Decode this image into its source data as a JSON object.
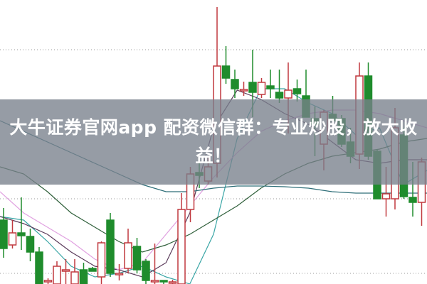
{
  "banner": {
    "text": "大牛证券官网app 配资微信群：专业炒股，放大收益！"
  },
  "colors": {
    "up": "#c0393f",
    "down": "#1f8c2c",
    "grid": "#999999",
    "ma_teal": "#3aa6a6",
    "ma_purple": "#5a3a5a",
    "ma_pink": "#e0a0e0",
    "ma_green": "#2f5f3a",
    "ma_long": "#2e6e78"
  },
  "chart_data": {
    "type": "candlestick",
    "ylim": [
      0,
      400
    ],
    "grid": true,
    "gridlines_y": [
      330,
      120,
      15
    ],
    "candles": [
      {
        "o": 90,
        "h": 107,
        "l": 37,
        "c": 50
      },
      {
        "o": 55,
        "h": 90,
        "l": 50,
        "c": 72
      },
      {
        "o": 72,
        "h": 122,
        "l": 48,
        "c": 68
      },
      {
        "o": 67,
        "h": 78,
        "l": 32,
        "c": 45
      },
      {
        "o": 45,
        "h": 52,
        "l": 0,
        "c": 0
      },
      {
        "o": 5,
        "h": 8,
        "l": 0,
        "c": 5
      },
      {
        "o": 0,
        "h": 32,
        "l": 0,
        "c": 25
      },
      {
        "o": 20,
        "h": 35,
        "l": 0,
        "c": 20
      },
      {
        "o": 0,
        "h": 35,
        "l": 0,
        "c": 17
      },
      {
        "o": 20,
        "h": 30,
        "l": 0,
        "c": 0
      },
      {
        "o": 22,
        "h": 24,
        "l": 18,
        "c": 18
      },
      {
        "o": 10,
        "h": 60,
        "l": 0,
        "c": 58
      },
      {
        "o": 90,
        "h": 100,
        "l": 10,
        "c": 15
      },
      {
        "o": 15,
        "h": 28,
        "l": 5,
        "c": 15
      },
      {
        "o": 22,
        "h": 78,
        "l": 15,
        "c": 58
      },
      {
        "o": 53,
        "h": 65,
        "l": 15,
        "c": 20
      },
      {
        "o": 32,
        "h": 35,
        "l": 0,
        "c": 5
      },
      {
        "o": 5,
        "h": 57,
        "l": 0,
        "c": 5
      },
      {
        "o": 5,
        "h": 5,
        "l": 0,
        "c": 3
      },
      {
        "o": 3,
        "h": 6,
        "l": 0,
        "c": 3
      },
      {
        "o": 0,
        "h": 128,
        "l": 0,
        "c": 105
      },
      {
        "o": 105,
        "h": 165,
        "l": 87,
        "c": 155
      },
      {
        "o": 157,
        "h": 178,
        "l": 135,
        "c": 153
      },
      {
        "o": 145,
        "h": 178,
        "l": 140,
        "c": 165
      },
      {
        "o": 170,
        "h": 390,
        "l": 150,
        "c": 307
      },
      {
        "o": 307,
        "h": 335,
        "l": 282,
        "c": 290
      },
      {
        "o": 288,
        "h": 302,
        "l": 262,
        "c": 275
      },
      {
        "o": 274,
        "h": 285,
        "l": 265,
        "c": 274
      },
      {
        "o": 284,
        "h": 330,
        "l": 235,
        "c": 270
      },
      {
        "o": 267,
        "h": 290,
        "l": 262,
        "c": 284
      },
      {
        "o": 279,
        "h": 302,
        "l": 262,
        "c": 275
      },
      {
        "o": 270,
        "h": 302,
        "l": 255,
        "c": 262
      },
      {
        "o": 262,
        "h": 312,
        "l": 212,
        "c": 273
      },
      {
        "o": 275,
        "h": 288,
        "l": 257,
        "c": 268
      },
      {
        "o": 265,
        "h": 302,
        "l": 235,
        "c": 235
      },
      {
        "o": 233,
        "h": 250,
        "l": 180,
        "c": 225
      },
      {
        "o": 197,
        "h": 245,
        "l": 160,
        "c": 242
      },
      {
        "o": 239,
        "h": 265,
        "l": 210,
        "c": 230
      },
      {
        "o": 233,
        "h": 238,
        "l": 193,
        "c": 197
      },
      {
        "o": 200,
        "h": 220,
        "l": 170,
        "c": 180
      },
      {
        "o": 183,
        "h": 312,
        "l": 162,
        "c": 293
      },
      {
        "o": 293,
        "h": 312,
        "l": 175,
        "c": 180
      },
      {
        "o": 187,
        "h": 190,
        "l": 120,
        "c": 120
      },
      {
        "o": 120,
        "h": 165,
        "l": 95,
        "c": 127
      },
      {
        "o": 120,
        "h": 248,
        "l": 105,
        "c": 220
      },
      {
        "o": 210,
        "h": 220,
        "l": 120,
        "c": 123
      },
      {
        "o": 122,
        "h": 172,
        "l": 95,
        "c": 115
      },
      {
        "o": 115,
        "h": 178,
        "l": 82,
        "c": 172
      }
    ],
    "moving_averages": [
      {
        "color": "#3aa6a6",
        "values": [
          95,
          90,
          60,
          25,
          10,
          15,
          25,
          10,
          0,
          70,
          205,
          275,
          275,
          255,
          240,
          210,
          220,
          140,
          160
        ]
      },
      {
        "color": "#5a3a5a",
        "values": [
          95,
          85,
          70,
          45,
          25,
          20,
          10,
          30,
          100,
          220,
          273,
          260,
          240,
          225,
          200,
          175,
          170,
          175,
          175
        ]
      },
      {
        "color": "#e0a0e0",
        "values": [
          130,
          100,
          80,
          60,
          35,
          20,
          30,
          70,
          110,
          150,
          185,
          215,
          230,
          240,
          245,
          245,
          240,
          230,
          220
        ]
      },
      {
        "color": "#2f5f3a",
        "values": [
          165,
          155,
          130,
          100,
          80,
          60,
          45,
          55,
          70,
          90,
          110,
          135,
          155,
          170,
          180,
          185,
          190,
          200,
          205
        ]
      },
      {
        "color": "#2e6e78",
        "values": [
          230,
          215,
          200,
          185,
          170,
          155,
          140,
          130,
          130,
          135,
          138,
          138,
          137,
          135,
          130,
          128,
          128,
          128,
          128
        ]
      }
    ]
  }
}
